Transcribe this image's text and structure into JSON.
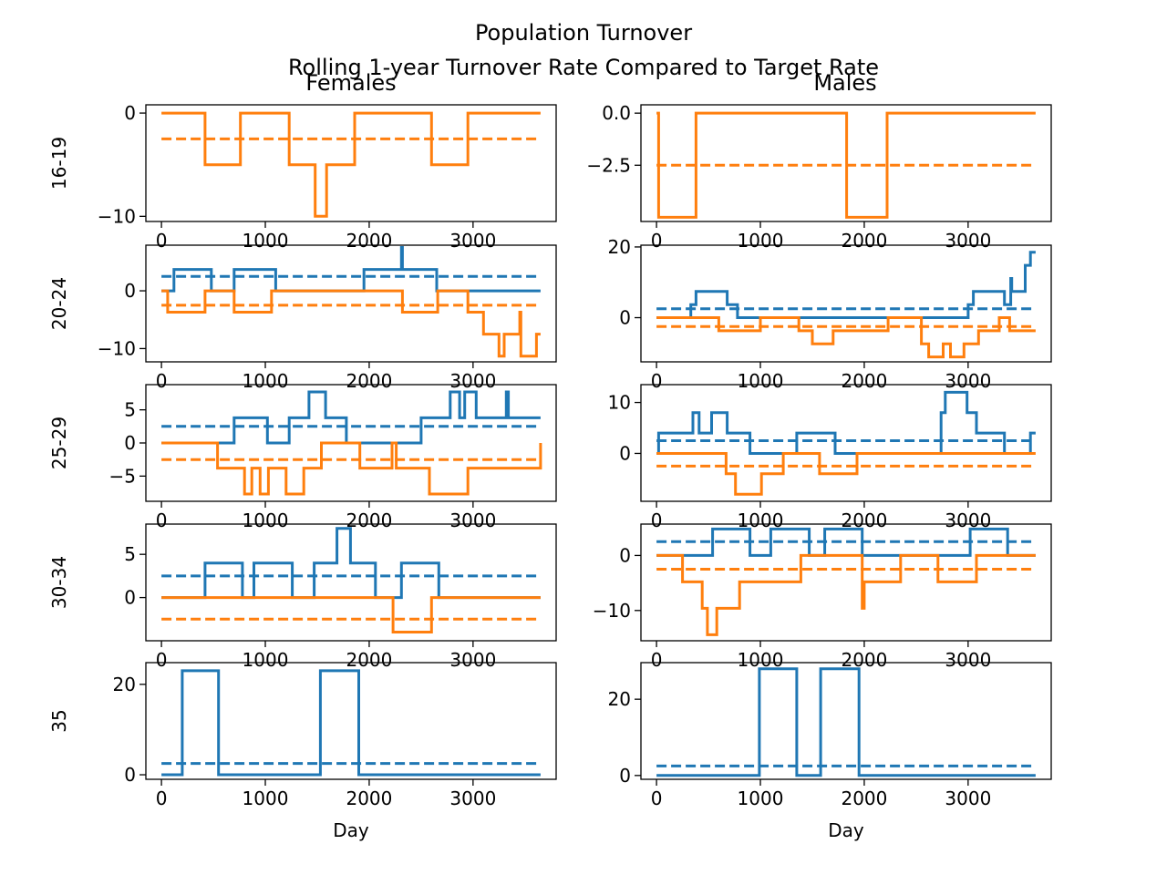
{
  "title": "Population Turnover",
  "subtitle": "Rolling 1-year Turnover Rate Compared to Target Rate",
  "columns": [
    "Females",
    "Males"
  ],
  "rows": [
    "16-19",
    "20-24",
    "25-29",
    "30-34",
    "35"
  ],
  "xlabel": "Day",
  "colors": {
    "blue": "#1f77b4",
    "orange": "#ff7f0e"
  },
  "chart_data": [
    {
      "type": "line",
      "row": "16-19",
      "column": "Females",
      "xlim": [
        -150,
        3800
      ],
      "ylim": [
        -10.5,
        0.8
      ],
      "xticks": [
        0,
        1000,
        2000,
        3000
      ],
      "yticks": [
        0,
        -10
      ],
      "ytick_labels": [
        "0",
        "−10"
      ],
      "series": [
        {
          "color": "orange",
          "step": true,
          "x": [
            0,
            420,
            760,
            1230,
            1480,
            1590,
            1860,
            2600,
            2950,
            3650
          ],
          "y": [
            0,
            -5,
            0,
            -5,
            -10,
            -5,
            0,
            -5,
            0,
            0
          ]
        },
        {
          "color": "orange",
          "dashed": true,
          "x": [
            0,
            3650
          ],
          "y": [
            -2.5,
            -2.5
          ]
        }
      ]
    },
    {
      "type": "line",
      "row": "16-19",
      "column": "Males",
      "xlim": [
        -150,
        3800
      ],
      "ylim": [
        -5.2,
        0.4
      ],
      "xticks": [
        0,
        1000,
        2000,
        3000
      ],
      "yticks": [
        0,
        -2.5
      ],
      "ytick_labels": [
        "0.0",
        "−2.5"
      ],
      "series": [
        {
          "color": "orange",
          "step": true,
          "x": [
            0,
            20,
            380,
            1830,
            2220,
            3650
          ],
          "y": [
            0,
            -5,
            0,
            -5,
            0,
            0
          ]
        },
        {
          "color": "orange",
          "dashed": true,
          "x": [
            0,
            3650
          ],
          "y": [
            -2.5,
            -2.5
          ]
        }
      ]
    },
    {
      "type": "line",
      "row": "20-24",
      "column": "Females",
      "xlim": [
        -150,
        3800
      ],
      "ylim": [
        -12.3,
        7.9
      ],
      "xticks": [
        0,
        1000,
        2000,
        3000
      ],
      "yticks": [
        0,
        -10
      ],
      "ytick_labels": [
        "0",
        "−10"
      ],
      "series": [
        {
          "color": "blue",
          "step": true,
          "x": [
            0,
            120,
            480,
            700,
            1100,
            1950,
            2310,
            2320,
            2330,
            2650,
            3650
          ],
          "y": [
            0,
            3.7,
            0,
            3.7,
            0,
            3.7,
            7.5,
            3.7,
            3.7,
            0,
            0
          ]
        },
        {
          "color": "blue",
          "dashed": true,
          "x": [
            0,
            3650
          ],
          "y": [
            2.5,
            2.5
          ]
        },
        {
          "color": "orange",
          "step": true,
          "x": [
            0,
            60,
            420,
            700,
            1060,
            2250,
            2320,
            2660,
            2950,
            3100,
            3250,
            3300,
            3450,
            3460,
            3480,
            3610,
            3650
          ],
          "y": [
            0,
            -3.7,
            0,
            -3.7,
            0,
            0,
            -3.7,
            0,
            -3.7,
            -7.5,
            -11.3,
            -7.5,
            -3.7,
            -11.3,
            -11.3,
            -7.5,
            -7.5
          ]
        },
        {
          "color": "orange",
          "dashed": true,
          "x": [
            0,
            3650
          ],
          "y": [
            -2.5,
            -2.5
          ]
        }
      ]
    },
    {
      "type": "line",
      "row": "20-24",
      "column": "Males",
      "xlim": [
        -150,
        3800
      ],
      "ylim": [
        -12.5,
        20.5
      ],
      "xticks": [
        0,
        1000,
        2000,
        3000
      ],
      "yticks": [
        20,
        0
      ],
      "ytick_labels": [
        "20",
        "0"
      ],
      "series": [
        {
          "color": "blue",
          "step": true,
          "x": [
            0,
            330,
            380,
            680,
            720,
            780,
            3000,
            3050,
            3350,
            3410,
            3420,
            3460,
            3550,
            3600,
            3650
          ],
          "y": [
            0,
            3.7,
            7.4,
            3.7,
            3.7,
            0,
            3.7,
            7.4,
            3.7,
            11.1,
            7.4,
            7.4,
            14.8,
            18.5,
            18.5
          ]
        },
        {
          "color": "blue",
          "dashed": true,
          "x": [
            0,
            3650
          ],
          "y": [
            2.5,
            2.5
          ]
        },
        {
          "color": "orange",
          "step": true,
          "x": [
            0,
            600,
            1000,
            1370,
            1500,
            1700,
            2230,
            2550,
            2620,
            2760,
            2830,
            2960,
            3100,
            3300,
            3400,
            3650
          ],
          "y": [
            0,
            -3.7,
            0,
            -3.7,
            -7.4,
            -3.7,
            0,
            -7.4,
            -11.1,
            -7.4,
            -11.1,
            -7.4,
            -3.7,
            0,
            -3.7,
            -3.7
          ]
        },
        {
          "color": "orange",
          "dashed": true,
          "x": [
            0,
            3650
          ],
          "y": [
            -2.5,
            -2.5
          ]
        }
      ]
    },
    {
      "type": "line",
      "row": "25-29",
      "column": "Females",
      "xlim": [
        -150,
        3800
      ],
      "ylim": [
        -8.8,
        8.8
      ],
      "xticks": [
        0,
        1000,
        2000,
        3000
      ],
      "yticks": [
        5,
        0,
        -5
      ],
      "ytick_labels": [
        "5",
        "0",
        "−5"
      ],
      "series": [
        {
          "color": "blue",
          "step": true,
          "x": [
            0,
            700,
            1020,
            1230,
            1420,
            1580,
            1780,
            2500,
            2780,
            2870,
            2920,
            3030,
            3320,
            3340,
            3360,
            3650
          ],
          "y": [
            0,
            3.8,
            0,
            3.8,
            7.7,
            3.8,
            0,
            3.8,
            7.7,
            3.8,
            7.7,
            3.8,
            7.7,
            3.8,
            3.8,
            3.8
          ]
        },
        {
          "color": "blue",
          "dashed": true,
          "x": [
            0,
            3650
          ],
          "y": [
            2.5,
            2.5
          ]
        },
        {
          "color": "orange",
          "step": true,
          "x": [
            0,
            540,
            800,
            870,
            950,
            1030,
            1200,
            1370,
            1540,
            1910,
            2220,
            2260,
            2580,
            2950,
            3290,
            3650
          ],
          "y": [
            0,
            -3.8,
            -7.7,
            -3.8,
            -7.7,
            -3.8,
            -7.7,
            -3.8,
            0,
            -3.8,
            0,
            -3.8,
            -7.7,
            -3.8,
            -3.8,
            0
          ]
        },
        {
          "color": "orange",
          "dashed": true,
          "x": [
            0,
            3650
          ],
          "y": [
            -2.5,
            -2.5
          ]
        }
      ]
    },
    {
      "type": "line",
      "row": "25-29",
      "column": "Males",
      "xlim": [
        -150,
        3800
      ],
      "ylim": [
        -9.4,
        13.5
      ],
      "xticks": [
        0,
        1000,
        2000,
        3000
      ],
      "yticks": [
        10,
        0
      ],
      "ytick_labels": [
        "10",
        "0"
      ],
      "series": [
        {
          "color": "blue",
          "step": true,
          "x": [
            0,
            20,
            350,
            410,
            530,
            680,
            900,
            1350,
            1720,
            2740,
            2780,
            2990,
            3080,
            3350,
            3600,
            3650
          ],
          "y": [
            0,
            4,
            8,
            4,
            8,
            4,
            0,
            4,
            0,
            8,
            12,
            8,
            4,
            0,
            4,
            4
          ]
        },
        {
          "color": "blue",
          "dashed": true,
          "x": [
            0,
            3650
          ],
          "y": [
            2.5,
            2.5
          ]
        },
        {
          "color": "orange",
          "step": true,
          "x": [
            0,
            670,
            760,
            1010,
            1220,
            1570,
            1930,
            2640,
            3650
          ],
          "y": [
            0,
            -4,
            -8,
            -4,
            0,
            -4,
            0,
            0,
            0
          ]
        },
        {
          "color": "orange",
          "dashed": true,
          "x": [
            0,
            3650
          ],
          "y": [
            -2.5,
            -2.5
          ]
        }
      ]
    },
    {
      "type": "line",
      "row": "30-34",
      "column": "Females",
      "xlim": [
        -150,
        3800
      ],
      "ylim": [
        -5,
        8.5
      ],
      "xticks": [
        0,
        1000,
        2000,
        3000
      ],
      "yticks": [
        5,
        0
      ],
      "ytick_labels": [
        "5",
        "0"
      ],
      "series": [
        {
          "color": "blue",
          "step": true,
          "x": [
            0,
            420,
            780,
            890,
            1260,
            1470,
            1690,
            1820,
            2060,
            2310,
            2670,
            3650
          ],
          "y": [
            0,
            4,
            0,
            4,
            0,
            4,
            8,
            4,
            0,
            4,
            0,
            0
          ]
        },
        {
          "color": "blue",
          "dashed": true,
          "x": [
            0,
            3650
          ],
          "y": [
            2.5,
            2.5
          ]
        },
        {
          "color": "orange",
          "step": true,
          "x": [
            0,
            2230,
            2600,
            3650
          ],
          "y": [
            0,
            -4,
            0,
            0
          ]
        },
        {
          "color": "orange",
          "dashed": true,
          "x": [
            0,
            3650
          ],
          "y": [
            -2.5,
            -2.5
          ]
        }
      ]
    },
    {
      "type": "line",
      "row": "30-34",
      "column": "Males",
      "xlim": [
        -150,
        3800
      ],
      "ylim": [
        -15.5,
        5.7
      ],
      "xticks": [
        0,
        1000,
        2000,
        3000
      ],
      "yticks": [
        0,
        -10
      ],
      "ytick_labels": [
        "0",
        "−10"
      ],
      "series": [
        {
          "color": "blue",
          "step": true,
          "x": [
            0,
            540,
            900,
            1100,
            1470,
            1620,
            1980,
            3020,
            3380,
            3650
          ],
          "y": [
            0,
            4.8,
            0,
            4.8,
            0,
            4.8,
            0,
            4.8,
            0,
            0
          ]
        },
        {
          "color": "blue",
          "dashed": true,
          "x": [
            0,
            3650
          ],
          "y": [
            2.5,
            2.5
          ]
        },
        {
          "color": "orange",
          "step": true,
          "x": [
            0,
            250,
            440,
            490,
            580,
            800,
            1390,
            1980,
            2000,
            2060,
            2350,
            2710,
            3080,
            3350,
            3650
          ],
          "y": [
            0,
            -4.8,
            -9.6,
            -14.4,
            -9.6,
            -4.8,
            0,
            -9.6,
            -4.8,
            -4.8,
            0,
            -4.8,
            0,
            0,
            0
          ]
        },
        {
          "color": "orange",
          "dashed": true,
          "x": [
            0,
            3650
          ],
          "y": [
            -2.5,
            -2.5
          ]
        }
      ]
    },
    {
      "type": "line",
      "row": "35",
      "column": "Females",
      "xlim": [
        -150,
        3800
      ],
      "ylim": [
        -1,
        24.8
      ],
      "xticks": [
        0,
        1000,
        2000,
        3000
      ],
      "xtick_labels": [
        "0",
        "1000",
        "2000",
        "3000"
      ],
      "xlabel": "Day",
      "yticks": [
        20,
        0
      ],
      "ytick_labels": [
        "20",
        "0"
      ],
      "series": [
        {
          "color": "blue",
          "step": true,
          "x": [
            0,
            200,
            550,
            1530,
            1900,
            3650
          ],
          "y": [
            0,
            23,
            0,
            23,
            0,
            0
          ]
        },
        {
          "color": "blue",
          "dashed": true,
          "x": [
            0,
            3650
          ],
          "y": [
            2.5,
            2.5
          ]
        }
      ]
    },
    {
      "type": "line",
      "row": "35",
      "column": "Males",
      "xlim": [
        -150,
        3800
      ],
      "ylim": [
        -1,
        29.6
      ],
      "xticks": [
        0,
        1000,
        2000,
        3000
      ],
      "xtick_labels": [
        "0",
        "1000",
        "2000",
        "3000"
      ],
      "xlabel": "Day",
      "yticks": [
        20,
        0
      ],
      "ytick_labels": [
        "20",
        "0"
      ],
      "series": [
        {
          "color": "blue",
          "step": true,
          "x": [
            0,
            990,
            1350,
            1580,
            1950,
            3650
          ],
          "y": [
            0,
            28,
            0,
            28,
            0,
            0
          ]
        },
        {
          "color": "blue",
          "dashed": true,
          "x": [
            0,
            3650
          ],
          "y": [
            2.5,
            2.5
          ]
        }
      ]
    }
  ]
}
